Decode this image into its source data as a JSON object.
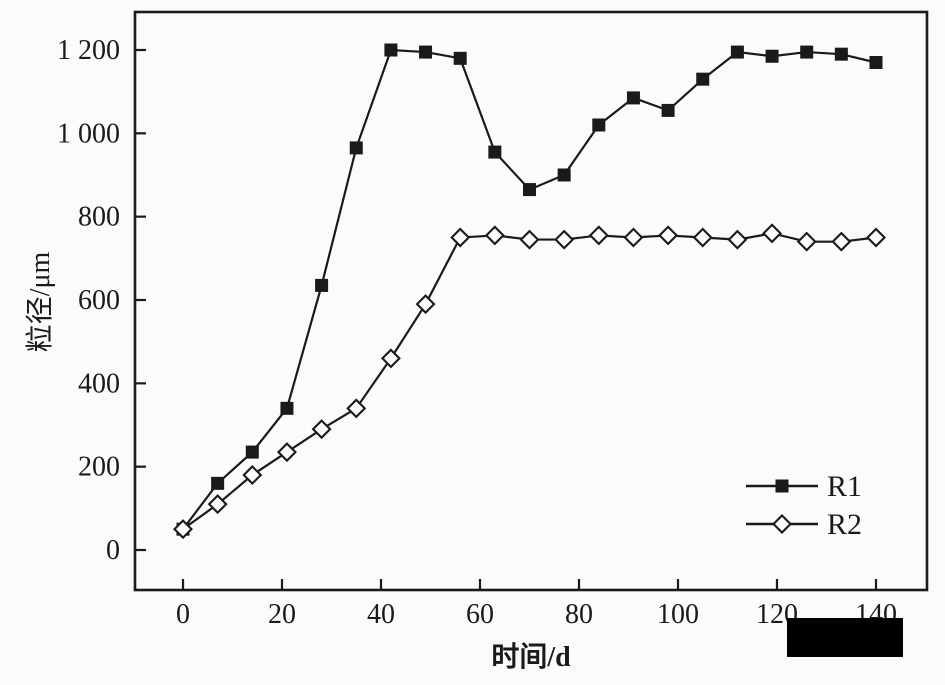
{
  "figure": {
    "x_axis_title": "时间/d",
    "y_axis_title": "粒径/μm"
  },
  "legend": {
    "items": [
      {
        "label": "R1",
        "marker": "filled-square"
      },
      {
        "label": "R2",
        "marker": "open-diamond"
      }
    ],
    "position": "lower right"
  },
  "overlays": {
    "redaction_box": {
      "present": true
    }
  },
  "chart_data": {
    "type": "line",
    "title": "",
    "xlabel": "时间/d",
    "ylabel": "粒径/μm",
    "x": [
      0,
      7,
      14,
      21,
      28,
      35,
      42,
      49,
      56,
      63,
      70,
      77,
      84,
      91,
      98,
      105,
      112,
      119,
      126,
      133,
      140
    ],
    "series": [
      {
        "name": "R1",
        "marker": "filled-square",
        "values": [
          50,
          160,
          235,
          340,
          635,
          965,
          1200,
          1195,
          1180,
          955,
          865,
          900,
          1020,
          1085,
          1055,
          1130,
          1195,
          1185,
          1195,
          1190,
          1170
        ]
      },
      {
        "name": "R2",
        "marker": "open-diamond",
        "values": [
          50,
          110,
          180,
          235,
          290,
          340,
          460,
          590,
          750,
          755,
          745,
          745,
          755,
          750,
          755,
          750,
          745,
          760,
          740,
          740,
          750
        ]
      }
    ],
    "xlim": [
      0,
      140
    ],
    "ylim": [
      0,
      1200
    ],
    "x_ticks": [
      0,
      20,
      40,
      60,
      80,
      100,
      120,
      140
    ],
    "x_tick_labels": [
      "0",
      "20",
      "40",
      "60",
      "80",
      "100",
      "120",
      "140"
    ],
    "y_ticks": [
      0,
      200,
      400,
      600,
      800,
      1000,
      1200
    ],
    "y_tick_labels": [
      "0",
      "200",
      "400",
      "600",
      "800",
      "1 000",
      "1 200"
    ],
    "grid": false,
    "legend_position": "lower right",
    "colors": {
      "stroke": "#1a1a1a",
      "background": "#fbfbfb",
      "marker_fill_open": "#fbfbfb",
      "redaction": "#000000"
    }
  }
}
